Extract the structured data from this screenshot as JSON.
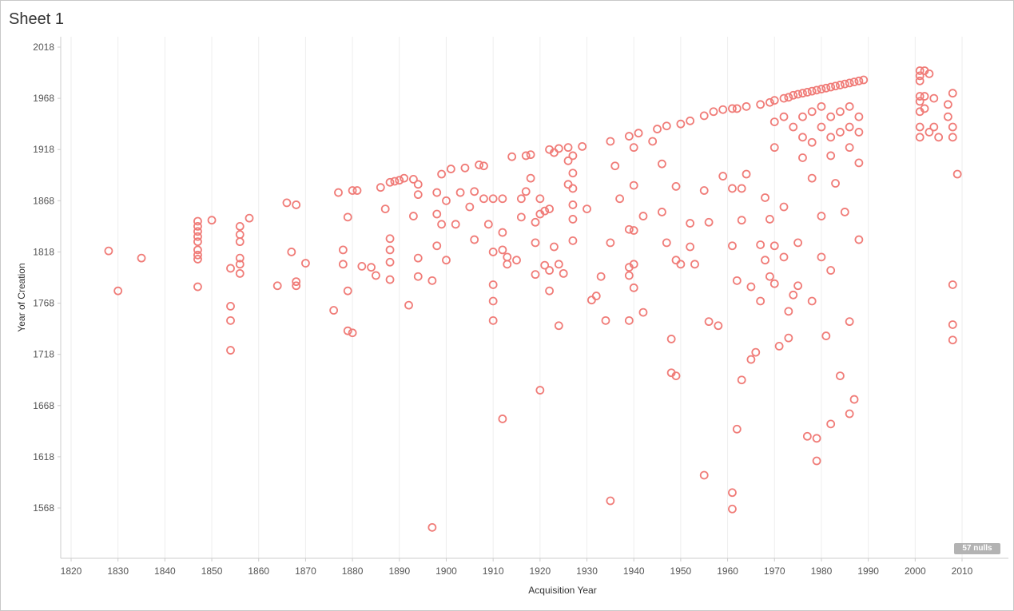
{
  "sheet": {
    "title": "Sheet 1"
  },
  "nulls_label": "57 nulls",
  "colors": {
    "mark": "#f07c78",
    "grid": "#eeeeee",
    "axis": "#cccccc"
  },
  "chart_data": {
    "type": "scatter",
    "title": "",
    "xlabel": "Acquisition Year",
    "ylabel": "Year of Creation",
    "xlim": [
      1817,
      2017
    ],
    "ylim": [
      1538,
      2023
    ],
    "x_ticks": [
      1820,
      1830,
      1840,
      1850,
      1860,
      1870,
      1880,
      1890,
      1900,
      1910,
      1920,
      1930,
      1940,
      1950,
      1960,
      1970,
      1980,
      1990,
      2000,
      2010
    ],
    "y_ticks": [
      2018,
      1968,
      1918,
      1868,
      1818,
      1768,
      1718,
      1668,
      1618,
      1568
    ],
    "grid": "vertical",
    "marker": "hollow-circle",
    "points": [
      [
        1828,
        1819
      ],
      [
        1830,
        1780
      ],
      [
        1835,
        1812
      ],
      [
        1847,
        1848
      ],
      [
        1847,
        1843
      ],
      [
        1847,
        1838
      ],
      [
        1847,
        1833
      ],
      [
        1847,
        1828
      ],
      [
        1847,
        1820
      ],
      [
        1847,
        1815
      ],
      [
        1847,
        1811
      ],
      [
        1847,
        1784
      ],
      [
        1850,
        1849
      ],
      [
        1854,
        1802
      ],
      [
        1854,
        1765
      ],
      [
        1854,
        1751
      ],
      [
        1854,
        1722
      ],
      [
        1856,
        1843
      ],
      [
        1856,
        1835
      ],
      [
        1856,
        1828
      ],
      [
        1856,
        1812
      ],
      [
        1856,
        1806
      ],
      [
        1856,
        1797
      ],
      [
        1858,
        1851
      ],
      [
        1864,
        1785
      ],
      [
        1866,
        1866
      ],
      [
        1867,
        1818
      ],
      [
        1868,
        1864
      ],
      [
        1868,
        1789
      ],
      [
        1868,
        1785
      ],
      [
        1870,
        1807
      ],
      [
        1876,
        1761
      ],
      [
        1877,
        1876
      ],
      [
        1878,
        1820
      ],
      [
        1878,
        1806
      ],
      [
        1879,
        1780
      ],
      [
        1879,
        1852
      ],
      [
        1879,
        1741
      ],
      [
        1880,
        1739
      ],
      [
        1880,
        1878
      ],
      [
        1881,
        1878
      ],
      [
        1882,
        1804
      ],
      [
        1884,
        1803
      ],
      [
        1885,
        1795
      ],
      [
        1886,
        1881
      ],
      [
        1887,
        1860
      ],
      [
        1888,
        1886
      ],
      [
        1888,
        1831
      ],
      [
        1888,
        1820
      ],
      [
        1888,
        1808
      ],
      [
        1888,
        1791
      ],
      [
        1889,
        1887
      ],
      [
        1890,
        1888
      ],
      [
        1891,
        1890
      ],
      [
        1892,
        1766
      ],
      [
        1893,
        1889
      ],
      [
        1893,
        1853
      ],
      [
        1894,
        1884
      ],
      [
        1894,
        1812
      ],
      [
        1894,
        1794
      ],
      [
        1894,
        1874
      ],
      [
        1897,
        1549
      ],
      [
        1897,
        1790
      ],
      [
        1898,
        1876
      ],
      [
        1898,
        1855
      ],
      [
        1898,
        1824
      ],
      [
        1899,
        1894
      ],
      [
        1899,
        1845
      ],
      [
        1900,
        1868
      ],
      [
        1900,
        1810
      ],
      [
        1901,
        1899
      ],
      [
        1902,
        1845
      ],
      [
        1903,
        1876
      ],
      [
        1904,
        1900
      ],
      [
        1905,
        1862
      ],
      [
        1906,
        1877
      ],
      [
        1906,
        1830
      ],
      [
        1907,
        1903
      ],
      [
        1908,
        1870
      ],
      [
        1908,
        1902
      ],
      [
        1909,
        1845
      ],
      [
        1910,
        1870
      ],
      [
        1910,
        1786
      ],
      [
        1910,
        1770
      ],
      [
        1910,
        1751
      ],
      [
        1910,
        1818
      ],
      [
        1912,
        1870
      ],
      [
        1912,
        1820
      ],
      [
        1912,
        1837
      ],
      [
        1912,
        1655
      ],
      [
        1913,
        1813
      ],
      [
        1913,
        1806
      ],
      [
        1914,
        1911
      ],
      [
        1915,
        1810
      ],
      [
        1916,
        1870
      ],
      [
        1916,
        1852
      ],
      [
        1917,
        1912
      ],
      [
        1917,
        1877
      ],
      [
        1918,
        1913
      ],
      [
        1918,
        1890
      ],
      [
        1919,
        1847
      ],
      [
        1919,
        1827
      ],
      [
        1919,
        1796
      ],
      [
        1920,
        1855
      ],
      [
        1920,
        1870
      ],
      [
        1920,
        1683
      ],
      [
        1921,
        1858
      ],
      [
        1921,
        1805
      ],
      [
        1922,
        1918
      ],
      [
        1922,
        1860
      ],
      [
        1922,
        1800
      ],
      [
        1922,
        1780
      ],
      [
        1923,
        1915
      ],
      [
        1923,
        1823
      ],
      [
        1924,
        1919
      ],
      [
        1924,
        1806
      ],
      [
        1924,
        1746
      ],
      [
        1925,
        1797
      ],
      [
        1926,
        1920
      ],
      [
        1926,
        1907
      ],
      [
        1926,
        1884
      ],
      [
        1927,
        1912
      ],
      [
        1927,
        1895
      ],
      [
        1927,
        1880
      ],
      [
        1927,
        1864
      ],
      [
        1927,
        1850
      ],
      [
        1927,
        1829
      ],
      [
        1929,
        1921
      ],
      [
        1930,
        1860
      ],
      [
        1931,
        1771
      ],
      [
        1932,
        1775
      ],
      [
        1933,
        1794
      ],
      [
        1934,
        1751
      ],
      [
        1935,
        1926
      ],
      [
        1935,
        1827
      ],
      [
        1935,
        1575
      ],
      [
        1936,
        1902
      ],
      [
        1937,
        1870
      ],
      [
        1939,
        1931
      ],
      [
        1939,
        1840
      ],
      [
        1939,
        1803
      ],
      [
        1939,
        1795
      ],
      [
        1939,
        1751
      ],
      [
        1940,
        1920
      ],
      [
        1940,
        1883
      ],
      [
        1940,
        1839
      ],
      [
        1940,
        1806
      ],
      [
        1940,
        1783
      ],
      [
        1941,
        1934
      ],
      [
        1942,
        1853
      ],
      [
        1942,
        1759
      ],
      [
        1944,
        1926
      ],
      [
        1945,
        1938
      ],
      [
        1946,
        1904
      ],
      [
        1946,
        1857
      ],
      [
        1947,
        1941
      ],
      [
        1947,
        1827
      ],
      [
        1948,
        1733
      ],
      [
        1948,
        1700
      ],
      [
        1949,
        1882
      ],
      [
        1949,
        1810
      ],
      [
        1949,
        1697
      ],
      [
        1950,
        1943
      ],
      [
        1950,
        1806
      ],
      [
        1952,
        1946
      ],
      [
        1952,
        1846
      ],
      [
        1952,
        1823
      ],
      [
        1953,
        1806
      ],
      [
        1955,
        1951
      ],
      [
        1955,
        1878
      ],
      [
        1955,
        1600
      ],
      [
        1956,
        1847
      ],
      [
        1956,
        1750
      ],
      [
        1957,
        1955
      ],
      [
        1958,
        1746
      ],
      [
        1959,
        1957
      ],
      [
        1959,
        1892
      ],
      [
        1961,
        1958
      ],
      [
        1961,
        1880
      ],
      [
        1961,
        1824
      ],
      [
        1961,
        1583
      ],
      [
        1961,
        1567
      ],
      [
        1962,
        1958
      ],
      [
        1962,
        1790
      ],
      [
        1962,
        1645
      ],
      [
        1963,
        1880
      ],
      [
        1963,
        1849
      ],
      [
        1963,
        1693
      ],
      [
        1964,
        1960
      ],
      [
        1964,
        1894
      ],
      [
        1965,
        1713
      ],
      [
        1965,
        1784
      ],
      [
        1966,
        1720
      ],
      [
        1967,
        1962
      ],
      [
        1967,
        1825
      ],
      [
        1967,
        1770
      ],
      [
        1968,
        1871
      ],
      [
        1968,
        1810
      ],
      [
        1969,
        1964
      ],
      [
        1969,
        1850
      ],
      [
        1969,
        1794
      ],
      [
        1970,
        1966
      ],
      [
        1970,
        1824
      ],
      [
        1970,
        1787
      ],
      [
        1971,
        1726
      ],
      [
        1972,
        1968
      ],
      [
        1972,
        1862
      ],
      [
        1972,
        1813
      ],
      [
        1973,
        1969
      ],
      [
        1973,
        1734
      ],
      [
        1973,
        1760
      ],
      [
        1974,
        1971
      ],
      [
        1974,
        1776
      ],
      [
        1975,
        1972
      ],
      [
        1975,
        1827
      ],
      [
        1975,
        1785
      ],
      [
        1976,
        1973
      ],
      [
        1977,
        1974
      ],
      [
        1977,
        1638
      ],
      [
        1978,
        1975
      ],
      [
        1978,
        1890
      ],
      [
        1978,
        1770
      ],
      [
        1979,
        1976
      ],
      [
        1979,
        1636
      ],
      [
        1979,
        1614
      ],
      [
        1980,
        1977
      ],
      [
        1980,
        1853
      ],
      [
        1980,
        1813
      ],
      [
        1981,
        1978
      ],
      [
        1981,
        1736
      ],
      [
        1982,
        1979
      ],
      [
        1982,
        1800
      ],
      [
        1982,
        1650
      ],
      [
        1983,
        1980
      ],
      [
        1983,
        1885
      ],
      [
        1984,
        1981
      ],
      [
        1984,
        1697
      ],
      [
        1985,
        1982
      ],
      [
        1985,
        1857
      ],
      [
        1986,
        1983
      ],
      [
        1986,
        1750
      ],
      [
        1986,
        1660
      ],
      [
        1987,
        1984
      ],
      [
        1987,
        1674
      ],
      [
        1988,
        1985
      ],
      [
        1988,
        1830
      ],
      [
        1989,
        1986
      ],
      [
        1982,
        1950
      ],
      [
        1982,
        1930
      ],
      [
        1982,
        1912
      ],
      [
        1984,
        1955
      ],
      [
        1984,
        1935
      ],
      [
        1986,
        1960
      ],
      [
        1986,
        1940
      ],
      [
        1986,
        1920
      ],
      [
        1988,
        1950
      ],
      [
        1988,
        1935
      ],
      [
        1988,
        1905
      ],
      [
        1976,
        1950
      ],
      [
        1976,
        1930
      ],
      [
        1976,
        1910
      ],
      [
        1978,
        1955
      ],
      [
        1978,
        1925
      ],
      [
        1980,
        1960
      ],
      [
        1980,
        1940
      ],
      [
        1970,
        1945
      ],
      [
        1970,
        1920
      ],
      [
        1972,
        1950
      ],
      [
        1974,
        1940
      ],
      [
        2001,
        1995
      ],
      [
        2001,
        1990
      ],
      [
        2001,
        1985
      ],
      [
        2001,
        1970
      ],
      [
        2001,
        1965
      ],
      [
        2001,
        1955
      ],
      [
        2001,
        1940
      ],
      [
        2001,
        1930
      ],
      [
        2002,
        1995
      ],
      [
        2002,
        1970
      ],
      [
        2002,
        1958
      ],
      [
        2003,
        1992
      ],
      [
        2003,
        1935
      ],
      [
        2004,
        1968
      ],
      [
        2004,
        1940
      ],
      [
        2005,
        1930
      ],
      [
        2007,
        1962
      ],
      [
        2007,
        1950
      ],
      [
        2008,
        1973
      ],
      [
        2008,
        1940
      ],
      [
        2008,
        1930
      ],
      [
        2008,
        1786
      ],
      [
        2008,
        1747
      ],
      [
        2008,
        1732
      ],
      [
        2009,
        1894
      ]
    ]
  }
}
